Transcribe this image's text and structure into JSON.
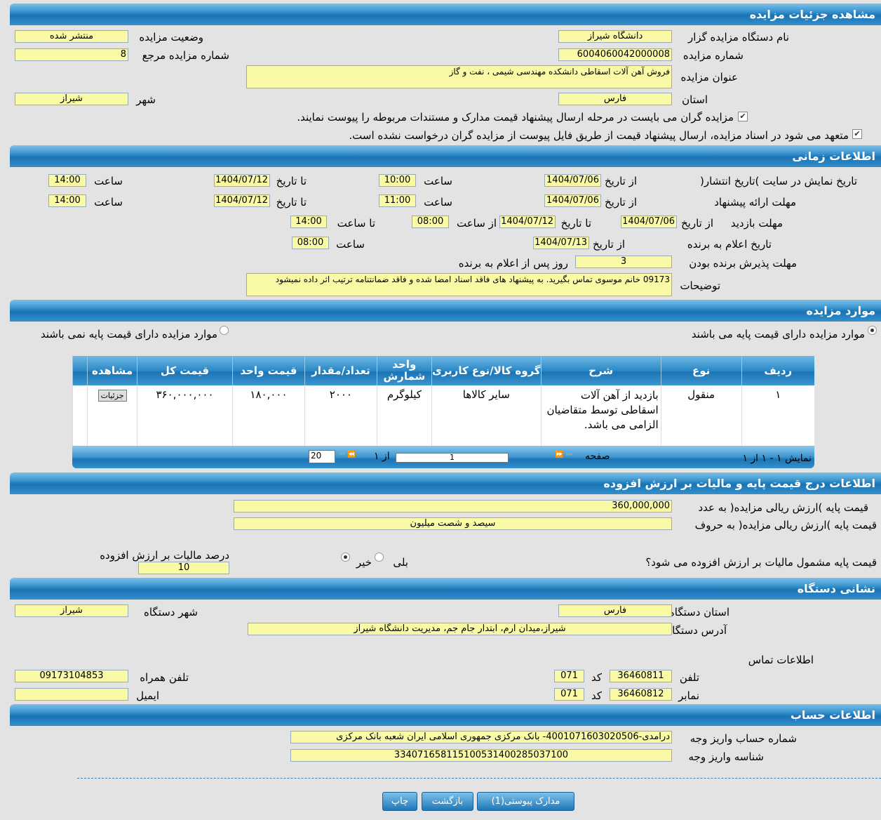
{
  "sections": {
    "details": "مشاهده جزئیات مزایده",
    "time": "اطلاعات زمانی",
    "items": "موارد مزایده",
    "price": "اطلاعات درج قیمت پایه و مالیات بر ارزش افزوده",
    "address": "نشانی دستگاه",
    "account": "اطلاعات حساب"
  },
  "details": {
    "org_label": "نام دستگاه مزایده گزار",
    "org": "دانشگاه شیراز",
    "status_label": "وضعیت مزایده",
    "status": "منتشر شده",
    "number_label": "شماره مزایده",
    "number": "6004060042000008",
    "ref_label": "شماره مزایده مرجع",
    "ref": "8",
    "title_label": "عنوان مزایده",
    "title": "فروش آهن آلات اسقاطی دانشکده مهندسی شیمی ، نفت و گاز",
    "province_label": "استان",
    "province": "فارس",
    "city_label": "شهر",
    "city": "شیراز",
    "check1": "مزایده گران می بایست در مرحله ارسال پیشنهاد قیمت مدارک و مستندات مربوطه را پیوست نمایند.",
    "check2": "متعهد می شود در اسناد مزایده، ارسال پیشنهاد قیمت از طریق فایل پیوست از مزایده گران درخواست نشده است."
  },
  "time": {
    "from_date": "از تاریخ",
    "to_date": "تا تاریخ",
    "hour": "ساعت",
    "from_hour": "از ساعت",
    "to_hour": "تا ساعت",
    "publish_label": "تاریخ نمایش در سایت )تاریخ انتشار(",
    "publish_from": "1404/07/06",
    "publish_from_time": "10:00",
    "publish_to": "1404/07/12",
    "publish_to_time": "14:00",
    "offer_label": "مهلت ارائه پیشنهاد",
    "offer_from": "1404/07/06",
    "offer_from_time": "11:00",
    "offer_to": "1404/07/12",
    "offer_to_time": "14:00",
    "visit_label": "مهلت بازدید",
    "visit_from": "1404/07/06",
    "visit_to": "1404/07/12",
    "visit_from_time": "08:00",
    "visit_to_time": "14:00",
    "announce_label": "تاریخ اعلام به برنده",
    "announce_date": "1404/07/13",
    "announce_time": "08:00",
    "accept_label": "مهلت پذیرش برنده بودن",
    "accept_days": "3",
    "accept_suffix": "روز پس از اعلام به برنده",
    "notes_label": "توضیحات",
    "notes": "09173 خانم موسوی تماس بگیرید. به پیشنهاد های فاقد اسناد امضا شده و فاقد ضمانتنامه ترتیب اثر داده نمیشود"
  },
  "items": {
    "radio_with": "موارد مزایده دارای قیمت پایه می باشند",
    "radio_without": "موارد مزایده دارای قیمت پایه نمی باشند",
    "columns": [
      "ردیف",
      "نوع",
      "شرح",
      "گروه کالا/نوع کاربری",
      "واحد شمارش",
      "تعداد/مقدار",
      "قیمت واحد",
      "قیمت کل",
      "مشاهده"
    ],
    "rows": [
      {
        "row": "۱",
        "type": "منقول",
        "desc": "بازدید از آهن آلات اسقاطی توسط متقاضیان الزامی می باشد.",
        "group": "سایر کالاها",
        "unit": "کیلوگرم",
        "qty": "۲۰۰۰",
        "unit_price": "۱۸۰,۰۰۰",
        "total": "۳۶۰,۰۰۰,۰۰۰",
        "action": "جزئیات"
      }
    ],
    "pager": {
      "showing": "نمایش ۱ - ۱ از ۱",
      "page_label": "صفحه",
      "page": "1",
      "of": "از ۱",
      "page_size": "20"
    }
  },
  "price": {
    "num_label": "قیمت پایه )ارزش ریالی مزایده( به عدد",
    "num": "360,000,000",
    "words_label": "قیمت پایه )ارزش ریالی مزایده( به حروف",
    "words": "سیصد و شصت میلیون",
    "vat_q": "قیمت پایه مشمول مالیات بر ارزش افزوده می شود؟",
    "yes": "بلی",
    "no": "خیر",
    "vat_selected": "خیر",
    "vat_pct_label": "درصد مالیات بر ارزش افزوده",
    "vat_pct": "10"
  },
  "address": {
    "province_label": "استان دستگاه",
    "province": "فارس",
    "city_label": "شهر دستگاه",
    "city": "شیراز",
    "addr_label": "آدرس دستگاه",
    "addr": "شیراز،میدان ارم، ابتدار جام جم، مدیریت دانشگاه شیراز",
    "contact": "اطلاعات تماس",
    "phone_label": "تلفن",
    "phone": "36460811",
    "code_label": "کد",
    "phone_code": "071",
    "fax_label": "نمابر",
    "fax": "36460812",
    "fax_code": "071",
    "mobile_label": "تلفن همراه",
    "mobile": "09173104853",
    "email_label": "ایمیل",
    "email": ""
  },
  "account": {
    "acc_label": "شماره حساب واریز وجه",
    "acc": "درآمدی-4001071603020506- بانک مرکزی جمهوری اسلامی ایران شعبه بانک مرکزی",
    "id_label": "شناسه واریز وجه",
    "id": "334071658115100531400285037100"
  },
  "buttons": {
    "attachments": "مدارک پیوستی(1)",
    "back": "بازگشت",
    "print": "چاپ"
  },
  "colors": {
    "header": "#1a72b3",
    "field": "#fafaa6",
    "background": "#e3e3e3"
  }
}
